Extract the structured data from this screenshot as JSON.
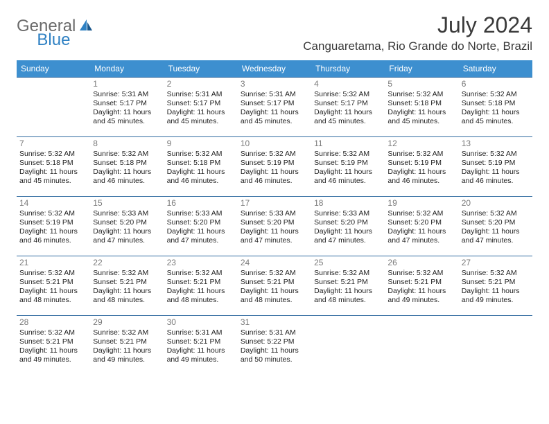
{
  "brand": {
    "part1": "General",
    "part2": "Blue"
  },
  "title": "July 2024",
  "location": "Canguaretama, Rio Grande do Norte, Brazil",
  "colors": {
    "header_bg": "#3d8fcf",
    "header_text": "#ffffff",
    "row_border": "#2f6aa0",
    "brand_gray": "#6a6a6a",
    "brand_blue": "#2f81c3",
    "body_text": "#222222",
    "daynum": "#7a7a7a",
    "background": "#ffffff"
  },
  "weekdays": [
    "Sunday",
    "Monday",
    "Tuesday",
    "Wednesday",
    "Thursday",
    "Friday",
    "Saturday"
  ],
  "weeks": [
    [
      null,
      {
        "n": "1",
        "sr": "5:31 AM",
        "ss": "5:17 PM",
        "dl": "11 hours and 45 minutes."
      },
      {
        "n": "2",
        "sr": "5:31 AM",
        "ss": "5:17 PM",
        "dl": "11 hours and 45 minutes."
      },
      {
        "n": "3",
        "sr": "5:31 AM",
        "ss": "5:17 PM",
        "dl": "11 hours and 45 minutes."
      },
      {
        "n": "4",
        "sr": "5:32 AM",
        "ss": "5:17 PM",
        "dl": "11 hours and 45 minutes."
      },
      {
        "n": "5",
        "sr": "5:32 AM",
        "ss": "5:18 PM",
        "dl": "11 hours and 45 minutes."
      },
      {
        "n": "6",
        "sr": "5:32 AM",
        "ss": "5:18 PM",
        "dl": "11 hours and 45 minutes."
      }
    ],
    [
      {
        "n": "7",
        "sr": "5:32 AM",
        "ss": "5:18 PM",
        "dl": "11 hours and 45 minutes."
      },
      {
        "n": "8",
        "sr": "5:32 AM",
        "ss": "5:18 PM",
        "dl": "11 hours and 46 minutes."
      },
      {
        "n": "9",
        "sr": "5:32 AM",
        "ss": "5:18 PM",
        "dl": "11 hours and 46 minutes."
      },
      {
        "n": "10",
        "sr": "5:32 AM",
        "ss": "5:19 PM",
        "dl": "11 hours and 46 minutes."
      },
      {
        "n": "11",
        "sr": "5:32 AM",
        "ss": "5:19 PM",
        "dl": "11 hours and 46 minutes."
      },
      {
        "n": "12",
        "sr": "5:32 AM",
        "ss": "5:19 PM",
        "dl": "11 hours and 46 minutes."
      },
      {
        "n": "13",
        "sr": "5:32 AM",
        "ss": "5:19 PM",
        "dl": "11 hours and 46 minutes."
      }
    ],
    [
      {
        "n": "14",
        "sr": "5:32 AM",
        "ss": "5:19 PM",
        "dl": "11 hours and 46 minutes."
      },
      {
        "n": "15",
        "sr": "5:33 AM",
        "ss": "5:20 PM",
        "dl": "11 hours and 47 minutes."
      },
      {
        "n": "16",
        "sr": "5:33 AM",
        "ss": "5:20 PM",
        "dl": "11 hours and 47 minutes."
      },
      {
        "n": "17",
        "sr": "5:33 AM",
        "ss": "5:20 PM",
        "dl": "11 hours and 47 minutes."
      },
      {
        "n": "18",
        "sr": "5:33 AM",
        "ss": "5:20 PM",
        "dl": "11 hours and 47 minutes."
      },
      {
        "n": "19",
        "sr": "5:32 AM",
        "ss": "5:20 PM",
        "dl": "11 hours and 47 minutes."
      },
      {
        "n": "20",
        "sr": "5:32 AM",
        "ss": "5:20 PM",
        "dl": "11 hours and 47 minutes."
      }
    ],
    [
      {
        "n": "21",
        "sr": "5:32 AM",
        "ss": "5:21 PM",
        "dl": "11 hours and 48 minutes."
      },
      {
        "n": "22",
        "sr": "5:32 AM",
        "ss": "5:21 PM",
        "dl": "11 hours and 48 minutes."
      },
      {
        "n": "23",
        "sr": "5:32 AM",
        "ss": "5:21 PM",
        "dl": "11 hours and 48 minutes."
      },
      {
        "n": "24",
        "sr": "5:32 AM",
        "ss": "5:21 PM",
        "dl": "11 hours and 48 minutes."
      },
      {
        "n": "25",
        "sr": "5:32 AM",
        "ss": "5:21 PM",
        "dl": "11 hours and 48 minutes."
      },
      {
        "n": "26",
        "sr": "5:32 AM",
        "ss": "5:21 PM",
        "dl": "11 hours and 49 minutes."
      },
      {
        "n": "27",
        "sr": "5:32 AM",
        "ss": "5:21 PM",
        "dl": "11 hours and 49 minutes."
      }
    ],
    [
      {
        "n": "28",
        "sr": "5:32 AM",
        "ss": "5:21 PM",
        "dl": "11 hours and 49 minutes."
      },
      {
        "n": "29",
        "sr": "5:32 AM",
        "ss": "5:21 PM",
        "dl": "11 hours and 49 minutes."
      },
      {
        "n": "30",
        "sr": "5:31 AM",
        "ss": "5:21 PM",
        "dl": "11 hours and 49 minutes."
      },
      {
        "n": "31",
        "sr": "5:31 AM",
        "ss": "5:22 PM",
        "dl": "11 hours and 50 minutes."
      },
      null,
      null,
      null
    ]
  ],
  "labels": {
    "sunrise": "Sunrise:",
    "sunset": "Sunset:",
    "daylight": "Daylight:"
  }
}
